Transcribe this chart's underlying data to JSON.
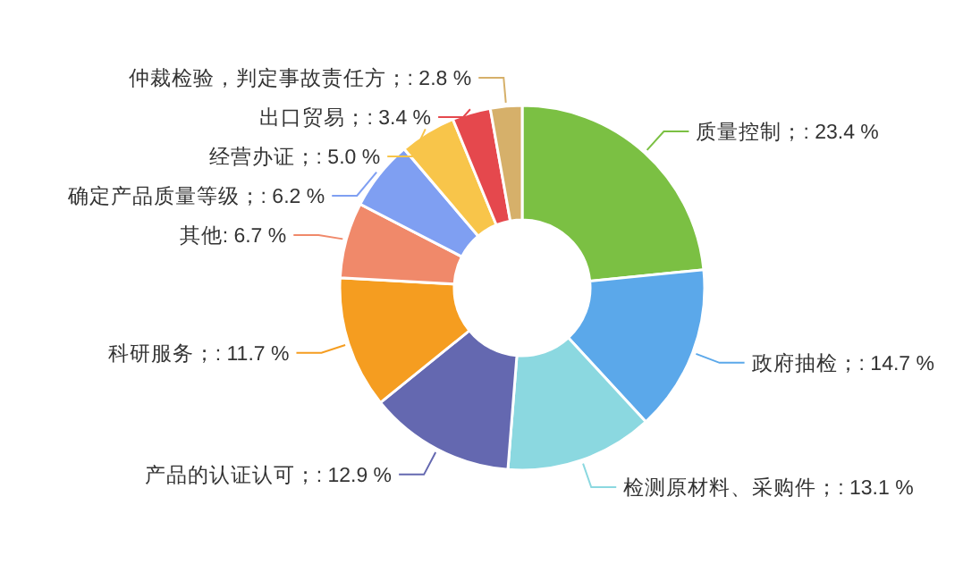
{
  "chart_data": {
    "type": "donut",
    "categories": [
      "质量控制",
      "政府抽检",
      "检测原材料、采购件",
      "产品的认证认可",
      "科研服务",
      "其他",
      "确定产品质量等级",
      "经营办证",
      "出口贸易",
      "仲裁检验，判定事故责任方"
    ],
    "values": [
      23.4,
      14.7,
      13.1,
      12.9,
      11.7,
      6.7,
      6.2,
      5.0,
      3.4,
      2.8
    ],
    "value_labels": [
      "；: 23.4 %",
      "；: 14.7 %",
      "；: 13.1 %",
      "；: 12.9 %",
      "；: 11.7 %",
      ": 6.7 %",
      "；: 6.2 %",
      "；: 5.0 %",
      "；: 3.4 %",
      "；: 2.8 %"
    ],
    "colors": [
      "#7bc043",
      "#5ba8ea",
      "#8bd8e0",
      "#6468b0",
      "#f59d20",
      "#f0896a",
      "#7f9ff2",
      "#f8c54a",
      "#e5484d",
      "#d6b06a"
    ]
  }
}
